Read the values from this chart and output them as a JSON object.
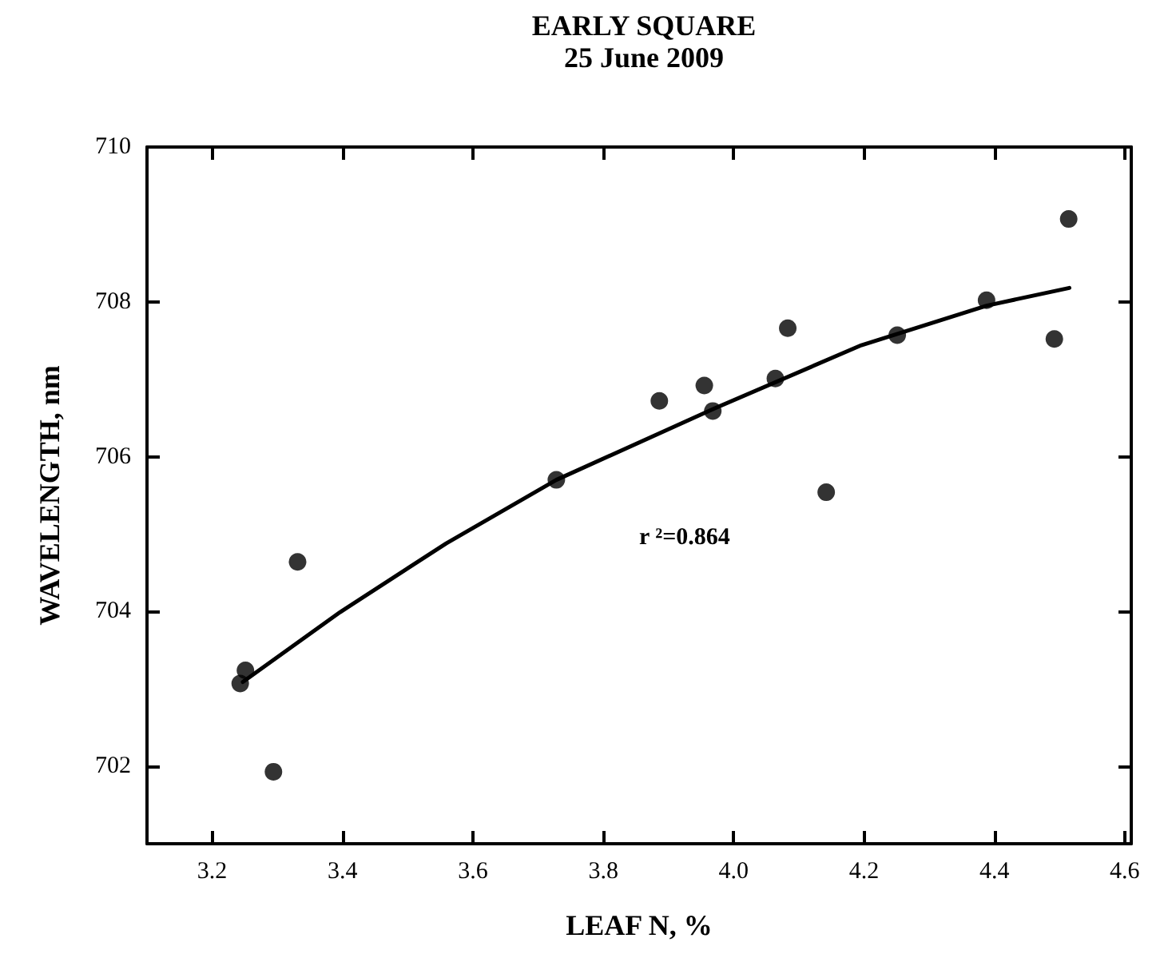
{
  "chart_data": {
    "type": "scatter",
    "title": "EARLY SQUARE",
    "subtitle": "25 June 2009",
    "xlabel": "LEAF N, %",
    "ylabel": "WAVELENGTH, nm",
    "annotations": [
      "r ²=0.864"
    ],
    "series": [
      {
        "type": "scatter",
        "color": "#000000",
        "marker": "circle",
        "x": [
          3.243,
          3.251,
          3.294,
          3.331,
          3.728,
          3.886,
          3.955,
          3.968,
          4.064,
          4.083,
          4.142,
          4.251,
          4.388,
          4.492,
          4.514
        ],
        "values": [
          703.07,
          703.24,
          701.93,
          704.64,
          705.7,
          706.72,
          706.92,
          706.59,
          707.01,
          707.66,
          705.54,
          707.57,
          708.02,
          707.52,
          709.07
        ]
      },
      {
        "type": "line",
        "color": "#000000",
        "marker": "none",
        "line_style": "solid",
        "x": [
          3.247,
          3.396,
          3.559,
          3.728,
          3.967,
          4.196,
          4.388,
          4.515
        ],
        "values": [
          703.09,
          703.99,
          704.88,
          705.7,
          706.61,
          707.44,
          707.95,
          708.18
        ]
      }
    ],
    "xlim": [
      3.1,
      4.61
    ],
    "xticks": [
      3.2,
      3.4,
      3.6,
      3.8,
      {
        "value": 4,
        "label": "4.0"
      },
      4.2,
      4.4,
      4.6
    ],
    "ylim": [
      701,
      710
    ],
    "yticks": [
      702,
      704,
      706,
      708,
      710
    ],
    "grid": false
  }
}
